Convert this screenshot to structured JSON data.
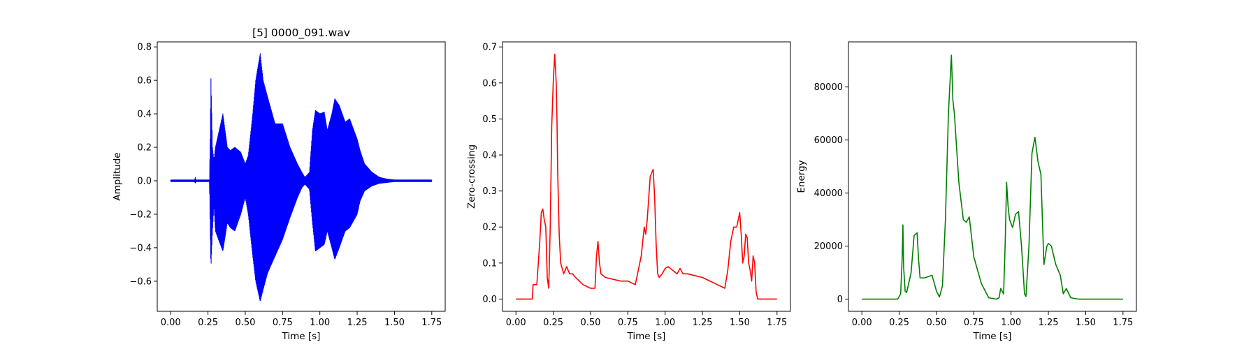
{
  "figure": {
    "background": "#ffffff"
  },
  "chart_data": [
    {
      "type": "line",
      "title": "[5] 0000_091.wav",
      "xlabel": "Time [s]",
      "ylabel": "Amplitude",
      "color": "#0000ff",
      "xlim": [
        -0.09,
        1.84
      ],
      "ylim": [
        -0.78,
        0.83
      ],
      "xticks": [
        0.0,
        0.25,
        0.5,
        0.75,
        1.0,
        1.25,
        1.5,
        1.75
      ],
      "xtick_labels": [
        "0.00",
        "0.25",
        "0.50",
        "0.75",
        "1.00",
        "1.25",
        "1.50",
        "1.75"
      ],
      "yticks": [
        -0.6,
        -0.4,
        -0.2,
        0.0,
        0.2,
        0.4,
        0.6,
        0.8
      ],
      "ytick_labels": [
        "−0.6",
        "−0.4",
        "−0.2",
        "0.0",
        "0.2",
        "0.4",
        "0.6",
        "0.8"
      ],
      "envelope": {
        "x": [
          0.0,
          0.16,
          0.165,
          0.17,
          0.26,
          0.265,
          0.27,
          0.28,
          0.29,
          0.3,
          0.32,
          0.35,
          0.38,
          0.4,
          0.43,
          0.47,
          0.5,
          0.52,
          0.55,
          0.57,
          0.6,
          0.62,
          0.65,
          0.7,
          0.75,
          0.8,
          0.85,
          0.88,
          0.9,
          0.93,
          0.95,
          0.97,
          1.0,
          1.03,
          1.05,
          1.08,
          1.1,
          1.13,
          1.17,
          1.2,
          1.25,
          1.27,
          1.3,
          1.35,
          1.4,
          1.45,
          1.5,
          1.75
        ],
        "upper": [
          0.005,
          0.005,
          0.02,
          0.005,
          0.005,
          0.25,
          0.61,
          0.2,
          0.12,
          0.2,
          0.28,
          0.4,
          0.2,
          0.18,
          0.2,
          0.17,
          0.1,
          0.15,
          0.4,
          0.6,
          0.76,
          0.6,
          0.5,
          0.34,
          0.34,
          0.2,
          0.1,
          0.05,
          0.02,
          0.05,
          0.3,
          0.42,
          0.4,
          0.41,
          0.3,
          0.4,
          0.49,
          0.45,
          0.35,
          0.37,
          0.25,
          0.18,
          0.1,
          0.05,
          0.02,
          0.01,
          0.005,
          0.005
        ],
        "lower": [
          -0.005,
          -0.005,
          -0.015,
          -0.005,
          -0.005,
          -0.3,
          -0.52,
          -0.3,
          -0.15,
          -0.3,
          -0.35,
          -0.42,
          -0.25,
          -0.28,
          -0.3,
          -0.2,
          -0.1,
          -0.2,
          -0.45,
          -0.6,
          -0.72,
          -0.65,
          -0.55,
          -0.45,
          -0.35,
          -0.22,
          -0.1,
          -0.04,
          -0.02,
          -0.05,
          -0.25,
          -0.42,
          -0.4,
          -0.38,
          -0.3,
          -0.4,
          -0.47,
          -0.4,
          -0.3,
          -0.28,
          -0.2,
          -0.12,
          -0.06,
          -0.03,
          -0.015,
          -0.01,
          -0.005,
          -0.005
        ]
      }
    },
    {
      "type": "line",
      "title": "",
      "xlabel": "Time [s]",
      "ylabel": "Zero-crossing",
      "color": "#ff0000",
      "xlim": [
        -0.09,
        1.84
      ],
      "ylim": [
        -0.034,
        0.714
      ],
      "xticks": [
        0.0,
        0.25,
        0.5,
        0.75,
        1.0,
        1.25,
        1.5,
        1.75
      ],
      "xtick_labels": [
        "0.00",
        "0.25",
        "0.50",
        "0.75",
        "1.00",
        "1.25",
        "1.50",
        "1.75"
      ],
      "yticks": [
        0.0,
        0.1,
        0.2,
        0.3,
        0.4,
        0.5,
        0.6,
        0.7
      ],
      "ytick_labels": [
        "0.0",
        "0.1",
        "0.2",
        "0.3",
        "0.4",
        "0.5",
        "0.6",
        "0.7"
      ],
      "series": [
        {
          "x": [
            0.0,
            0.11,
            0.115,
            0.14,
            0.16,
            0.17,
            0.18,
            0.19,
            0.2,
            0.21,
            0.22,
            0.23,
            0.24,
            0.25,
            0.26,
            0.27,
            0.275,
            0.28,
            0.29,
            0.3,
            0.32,
            0.34,
            0.36,
            0.38,
            0.4,
            0.45,
            0.5,
            0.53,
            0.54,
            0.55,
            0.56,
            0.57,
            0.6,
            0.65,
            0.7,
            0.75,
            0.8,
            0.84,
            0.86,
            0.87,
            0.88,
            0.9,
            0.92,
            0.93,
            0.94,
            0.95,
            0.96,
            0.98,
            1.0,
            1.02,
            1.05,
            1.08,
            1.1,
            1.12,
            1.15,
            1.2,
            1.25,
            1.3,
            1.35,
            1.4,
            1.42,
            1.44,
            1.46,
            1.48,
            1.5,
            1.51,
            1.52,
            1.53,
            1.54,
            1.55,
            1.56,
            1.57,
            1.58,
            1.59,
            1.6,
            1.61,
            1.62,
            1.63,
            1.65,
            1.75
          ],
          "y": [
            0.0,
            0.0,
            0.04,
            0.04,
            0.16,
            0.24,
            0.25,
            0.22,
            0.2,
            0.06,
            0.03,
            0.2,
            0.48,
            0.6,
            0.68,
            0.6,
            0.5,
            0.35,
            0.18,
            0.1,
            0.07,
            0.09,
            0.07,
            0.07,
            0.06,
            0.04,
            0.03,
            0.03,
            0.12,
            0.16,
            0.1,
            0.07,
            0.06,
            0.055,
            0.05,
            0.05,
            0.04,
            0.12,
            0.2,
            0.18,
            0.22,
            0.34,
            0.36,
            0.28,
            0.15,
            0.07,
            0.06,
            0.07,
            0.085,
            0.09,
            0.08,
            0.07,
            0.085,
            0.07,
            0.07,
            0.065,
            0.06,
            0.05,
            0.04,
            0.03,
            0.08,
            0.16,
            0.2,
            0.2,
            0.24,
            0.18,
            0.1,
            0.12,
            0.18,
            0.17,
            0.1,
            0.08,
            0.05,
            0.12,
            0.1,
            0.02,
            0.0,
            0.0,
            0.0,
            0.0
          ]
        }
      ]
    },
    {
      "type": "line",
      "title": "",
      "xlabel": "Time [s]",
      "ylabel": "Energy",
      "color": "#008000",
      "xlim": [
        -0.09,
        1.84
      ],
      "ylim": [
        -4600,
        97000
      ],
      "xticks": [
        0.0,
        0.25,
        0.5,
        0.75,
        1.0,
        1.25,
        1.5,
        1.75
      ],
      "xtick_labels": [
        "0.00",
        "0.25",
        "0.50",
        "0.75",
        "1.00",
        "1.25",
        "1.50",
        "1.75"
      ],
      "yticks": [
        0,
        20000,
        40000,
        60000,
        80000
      ],
      "ytick_labels": [
        "0",
        "20000",
        "40000",
        "60000",
        "80000"
      ],
      "series": [
        {
          "x": [
            0.0,
            0.24,
            0.26,
            0.27,
            0.275,
            0.28,
            0.29,
            0.3,
            0.33,
            0.35,
            0.37,
            0.38,
            0.39,
            0.42,
            0.47,
            0.5,
            0.52,
            0.54,
            0.56,
            0.58,
            0.6,
            0.61,
            0.62,
            0.65,
            0.68,
            0.7,
            0.72,
            0.75,
            0.8,
            0.85,
            0.9,
            0.92,
            0.93,
            0.94,
            0.95,
            0.96,
            0.97,
            0.98,
            0.99,
            1.01,
            1.03,
            1.05,
            1.07,
            1.09,
            1.1,
            1.12,
            1.14,
            1.16,
            1.18,
            1.2,
            1.22,
            1.24,
            1.25,
            1.27,
            1.3,
            1.33,
            1.35,
            1.37,
            1.4,
            1.45,
            1.75
          ],
          "y": [
            0,
            0,
            2000,
            15000,
            28000,
            12000,
            3000,
            2500,
            10000,
            24000,
            25000,
            15000,
            8000,
            8000,
            9000,
            3000,
            800,
            5000,
            30000,
            70000,
            92000,
            75000,
            70000,
            44000,
            30000,
            29000,
            31000,
            16000,
            6000,
            500,
            0,
            500,
            4000,
            3000,
            2000,
            20000,
            44000,
            35000,
            30000,
            27000,
            32000,
            33000,
            20000,
            2000,
            1000,
            20000,
            55000,
            61000,
            52000,
            47000,
            13000,
            20000,
            21000,
            20000,
            13000,
            9000,
            2000,
            4000,
            500,
            0,
            0
          ]
        }
      ]
    }
  ]
}
